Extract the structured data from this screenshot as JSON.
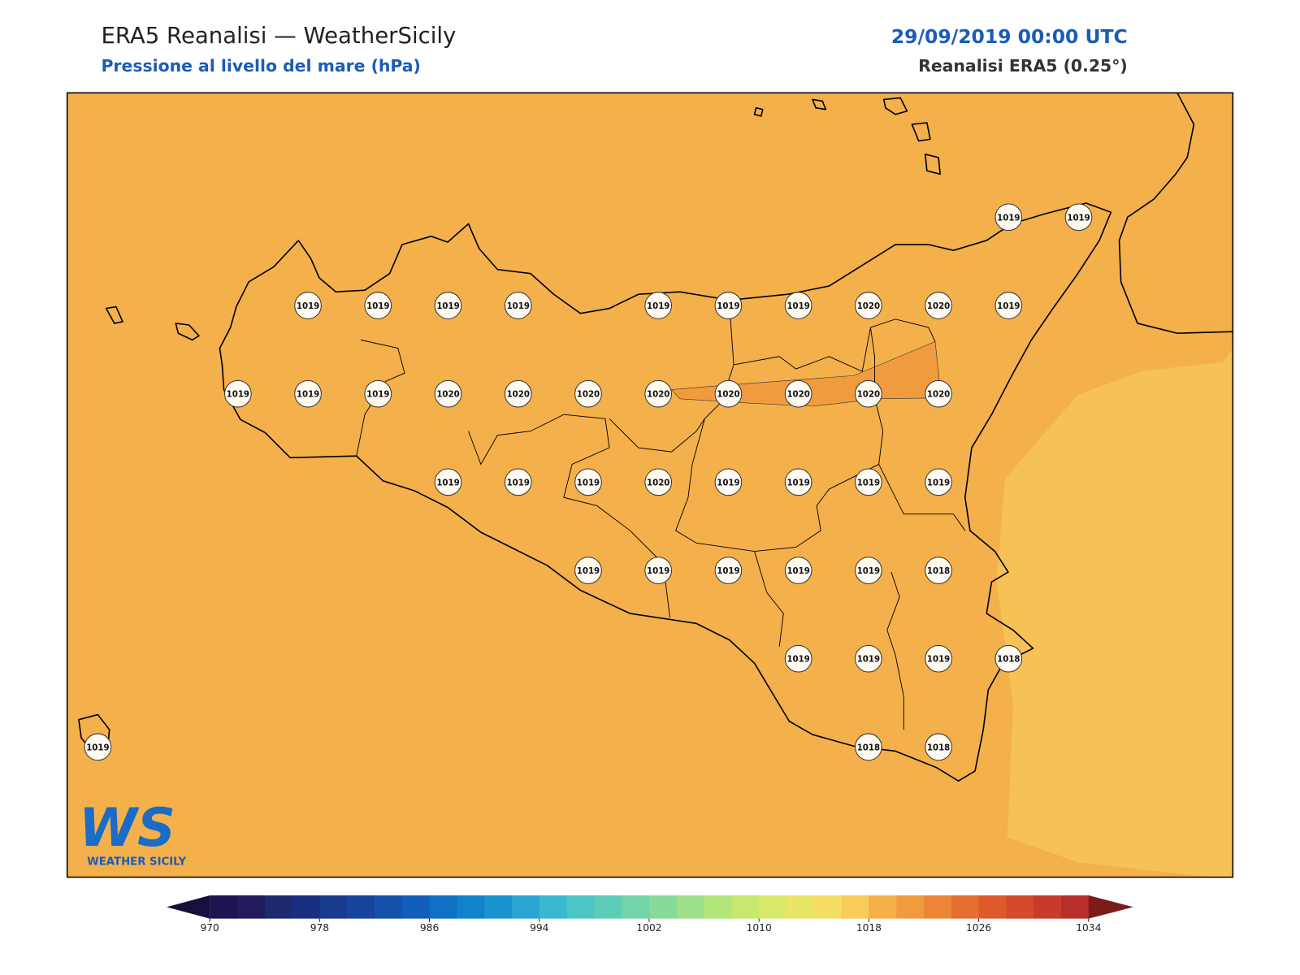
{
  "header": {
    "title": "ERA5 Reanalisi — WeatherSicily",
    "subtitle": "Pressione al livello del mare (hPa)",
    "datetime": "29/09/2019 00:00 UTC",
    "source": "Reanalisi ERA5 (0.25°)"
  },
  "pressure_grid": {
    "rows": [
      [
        null,
        null,
        null,
        null,
        null,
        null,
        null,
        null,
        null,
        null,
        null,
        null,
        null,
        1019,
        1019
      ],
      [
        null,
        null,
        null,
        1019,
        1019,
        1019,
        1019,
        null,
        1019,
        1019,
        1019,
        1020,
        1020,
        1019,
        null
      ],
      [
        null,
        null,
        1019,
        1019,
        1019,
        1020,
        1020,
        1020,
        1020,
        1020,
        1020,
        1020,
        1020,
        null,
        null
      ],
      [
        null,
        null,
        null,
        null,
        null,
        1019,
        1019,
        1019,
        1020,
        1019,
        1019,
        1019,
        1019,
        null,
        null
      ],
      [
        null,
        null,
        null,
        null,
        null,
        null,
        null,
        1019,
        1019,
        1019,
        1019,
        1019,
        1018,
        null,
        null
      ],
      [
        null,
        null,
        null,
        null,
        null,
        null,
        null,
        null,
        null,
        null,
        1019,
        1019,
        1019,
        1018,
        null
      ],
      [
        1019,
        null,
        null,
        null,
        null,
        null,
        null,
        null,
        null,
        null,
        null,
        1018,
        1018,
        null,
        null
      ]
    ]
  },
  "colorbar": {
    "lim": [
      970,
      1034
    ],
    "ticks": [
      970,
      978,
      986,
      994,
      1002,
      1010,
      1018,
      1026,
      1034
    ],
    "colors": [
      "#1e1450",
      "#221c5c",
      "#1e2a6e",
      "#1a2f80",
      "#183a8f",
      "#16449c",
      "#1451aa",
      "#125eb8",
      "#1070c4",
      "#1282cc",
      "#1a94d0",
      "#2aa6d2",
      "#3bb8cf",
      "#4dc4c6",
      "#5ecdb8",
      "#72d4a8",
      "#88da98",
      "#9ee089",
      "#b2e57a",
      "#c6e86e",
      "#d8e86a",
      "#e8e466",
      "#f5dc62",
      "#f7cc5a",
      "#f4b04a",
      "#f09c3e",
      "#ec8636",
      "#e66e30",
      "#de5a2c",
      "#d44a2a",
      "#c83a2a",
      "#b82e2a"
    ],
    "under_color": "#170f3c",
    "over_color": "#7a1c1c"
  },
  "logo": {
    "mark": "WS",
    "name": "WEATHER SICILY"
  }
}
